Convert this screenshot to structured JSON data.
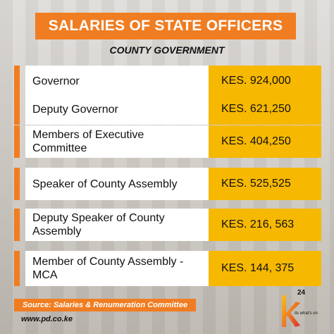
{
  "title": "SALARIES OF STATE OFFICERS",
  "subtitle": "COUNTY GOVERNMENT",
  "rows": [
    {
      "position": "Governor",
      "salary": "KES. 924,000"
    },
    {
      "position": "Deputy Governor",
      "salary": "KES. 621,250"
    },
    {
      "position": "Members of Executive Committee",
      "salary": "KES. 404,250"
    },
    {
      "position": "Speaker of County Assembly",
      "salary": "KES. 525,525"
    },
    {
      "position": "Deputy Speaker of County Assembly",
      "salary": "KES. 216, 563"
    },
    {
      "position": "Member of County Assembly - MCA",
      "salary": "KES. 144, 375"
    }
  ],
  "source": "Source: Salaries & Renumeration Committee",
  "url": "www.pd.co.ke",
  "logo": {
    "number": "24",
    "tagline": "its what's on"
  },
  "colors": {
    "accent": "#f07d22",
    "value_bg": "#f6b800"
  }
}
